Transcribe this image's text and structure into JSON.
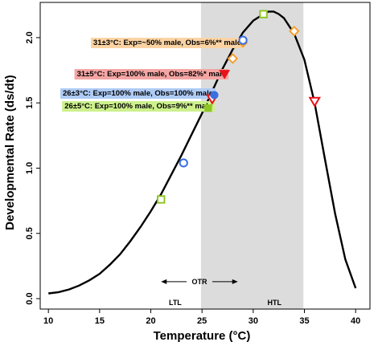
{
  "chart_data": {
    "type": "line",
    "xlabel": "Temperature (°C)",
    "ylabel": "Developmental Rate (ds/dt)",
    "xlim": [
      9.2,
      41.4
    ],
    "ylim": [
      -0.08,
      2.27
    ],
    "xticks": [
      10,
      15,
      20,
      25,
      30,
      35,
      40
    ],
    "yticks": [
      0.0,
      0.5,
      1.0,
      1.5,
      2.0
    ],
    "ytick_labels": [
      "0.0",
      "0.5",
      "1.0",
      "1.5",
      "2.0"
    ],
    "grid": false,
    "shaded_region": {
      "x_start": 24.9,
      "x_end": 34.9,
      "color": "#dcdcdc"
    },
    "curve": [
      [
        10.0,
        0.04
      ],
      [
        11.0,
        0.05
      ],
      [
        12.0,
        0.07
      ],
      [
        13.0,
        0.1
      ],
      [
        14.0,
        0.14
      ],
      [
        15.0,
        0.19
      ],
      [
        16.0,
        0.26
      ],
      [
        17.0,
        0.34
      ],
      [
        18.0,
        0.44
      ],
      [
        19.0,
        0.55
      ],
      [
        20.0,
        0.67
      ],
      [
        21.0,
        0.8
      ],
      [
        22.0,
        0.95
      ],
      [
        23.0,
        1.1
      ],
      [
        24.0,
        1.26
      ],
      [
        25.0,
        1.42
      ],
      [
        26.0,
        1.59
      ],
      [
        27.0,
        1.76
      ],
      [
        28.0,
        1.91
      ],
      [
        29.0,
        2.04
      ],
      [
        30.0,
        2.13
      ],
      [
        31.0,
        2.18
      ],
      [
        31.5,
        2.2
      ],
      [
        32.0,
        2.2
      ],
      [
        32.5,
        2.18
      ],
      [
        33.0,
        2.15
      ],
      [
        34.0,
        2.03
      ],
      [
        35.0,
        1.83
      ],
      [
        36.0,
        1.5
      ],
      [
        37.0,
        1.07
      ],
      [
        38.0,
        0.65
      ],
      [
        39.0,
        0.3
      ],
      [
        40.0,
        0.08
      ]
    ],
    "series": [
      {
        "name": "31±3°C: Exp=~50% male, Obs=6%** male",
        "color": "#f5a033",
        "label_bg": "#fbd3a3",
        "points": [
          {
            "x": 28.0,
            "y": 1.84,
            "shape": "diamond",
            "fill": "open"
          },
          {
            "x": 29.0,
            "y": 1.96,
            "shape": "diamond",
            "fill": "filled"
          },
          {
            "x": 34.0,
            "y": 2.05,
            "shape": "diamond",
            "fill": "open"
          }
        ]
      },
      {
        "name": "31±5°C: Exp=100% male, Obs=82%* male",
        "color": "#e8121a",
        "label_bg": "#f4a5a3",
        "points": [
          {
            "x": 26.0,
            "y": 1.53,
            "shape": "triangle-down",
            "fill": "open"
          },
          {
            "x": 27.2,
            "y": 1.72,
            "shape": "triangle-down",
            "fill": "filled"
          },
          {
            "x": 36.0,
            "y": 1.51,
            "shape": "triangle-down",
            "fill": "open"
          }
        ]
      },
      {
        "name": "26±3°C: Exp=100% male, Obs=100% male",
        "color": "#3a6fe0",
        "label_bg": "#aecbf5",
        "points": [
          {
            "x": 23.2,
            "y": 1.04,
            "shape": "circle",
            "fill": "open"
          },
          {
            "x": 26.2,
            "y": 1.56,
            "shape": "circle",
            "fill": "filled"
          },
          {
            "x": 29.0,
            "y": 1.98,
            "shape": "circle",
            "fill": "open"
          }
        ]
      },
      {
        "name": "26±5°C: Exp=100% male, Obs=9%** male",
        "color": "#8fc626",
        "label_bg": "#cdf08c",
        "points": [
          {
            "x": 21.0,
            "y": 0.76,
            "shape": "square",
            "fill": "open"
          },
          {
            "x": 25.6,
            "y": 1.46,
            "shape": "square",
            "fill": "filled"
          },
          {
            "x": 31.0,
            "y": 2.18,
            "shape": "square",
            "fill": "open"
          }
        ]
      }
    ],
    "annotations": {
      "range_label": "OTR",
      "range_arrow": {
        "from": 21.0,
        "to": 28.5,
        "y": 0.13
      },
      "lower_limit_label": "LTL",
      "upper_limit_label": "HTL",
      "lower_limit_x": 24.9,
      "upper_limit_x": 34.9
    }
  }
}
